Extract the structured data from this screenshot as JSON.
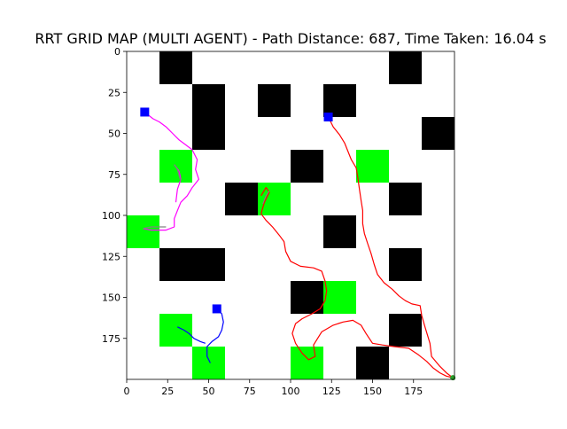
{
  "chart_data": {
    "type": "heatmap",
    "title": "RRT GRID MAP (MULTI AGENT) - Path Distance: 687, Time Taken: 16.04 s",
    "xlabel": "",
    "ylabel": "",
    "xlim": [
      0,
      200
    ],
    "ylim": [
      200,
      0
    ],
    "x_ticks": [
      0,
      25,
      50,
      75,
      100,
      125,
      150,
      175
    ],
    "y_ticks": [
      0,
      25,
      50,
      75,
      100,
      125,
      150,
      175
    ],
    "grid": false,
    "cell_size": 20,
    "colors": {
      "free": "#ffffff",
      "obstacle": "#000000",
      "goal_cell": "#00ff00",
      "start_marker": "#0000ff",
      "end_marker": "#2ca02c"
    },
    "obstacles": [
      [
        20,
        0
      ],
      [
        160,
        0
      ],
      [
        40,
        20
      ],
      [
        80,
        20
      ],
      [
        120,
        20
      ],
      [
        40,
        40
      ],
      [
        180,
        40
      ],
      [
        100,
        60
      ],
      [
        60,
        80
      ],
      [
        160,
        80
      ],
      [
        120,
        100
      ],
      [
        20,
        120
      ],
      [
        40,
        120
      ],
      [
        160,
        120
      ],
      [
        100,
        140
      ],
      [
        160,
        160
      ],
      [
        140,
        180
      ]
    ],
    "goal_cells": [
      [
        20,
        60
      ],
      [
        140,
        60
      ],
      [
        80,
        80
      ],
      [
        0,
        100
      ],
      [
        120,
        140
      ],
      [
        20,
        160
      ],
      [
        40,
        180
      ],
      [
        100,
        180
      ]
    ],
    "start_markers": [
      [
        11,
        37
      ],
      [
        123,
        40
      ],
      [
        55,
        157
      ]
    ],
    "end_markers": [
      [
        199,
        199
      ]
    ],
    "series": [
      {
        "color": "#ff00ff",
        "points": [
          [
            11,
            37
          ],
          [
            16,
            41
          ],
          [
            20,
            43
          ],
          [
            24,
            46
          ],
          [
            28,
            50
          ],
          [
            32,
            54
          ],
          [
            36,
            57
          ],
          [
            40,
            60
          ],
          [
            43,
            66
          ],
          [
            42,
            72
          ],
          [
            44,
            78
          ],
          [
            40,
            83
          ],
          [
            37,
            88
          ],
          [
            33,
            92
          ],
          [
            31,
            97
          ],
          [
            29,
            102
          ],
          [
            29,
            107
          ],
          [
            24,
            109
          ],
          [
            20,
            109
          ],
          [
            15,
            109
          ],
          [
            10,
            108
          ]
        ]
      },
      {
        "color": "#ff00ff",
        "points": [
          [
            29,
            69
          ],
          [
            32,
            73
          ],
          [
            33,
            78
          ],
          [
            31,
            84
          ],
          [
            30,
            92
          ]
        ]
      },
      {
        "color": "#808080",
        "points": [
          [
            29,
            69
          ],
          [
            31,
            72
          ],
          [
            32,
            76
          ],
          [
            33,
            79
          ]
        ]
      },
      {
        "color": "#808080",
        "points": [
          [
            10,
            108
          ],
          [
            15,
            107
          ],
          [
            20,
            107
          ],
          [
            24,
            107
          ]
        ]
      },
      {
        "color": "#0000ff",
        "points": [
          [
            55,
            157
          ],
          [
            58,
            160
          ],
          [
            59,
            165
          ],
          [
            58,
            170
          ],
          [
            56,
            174
          ],
          [
            52,
            177
          ],
          [
            49,
            180
          ],
          [
            49,
            186
          ],
          [
            51,
            190
          ]
        ]
      },
      {
        "color": "#0000ff",
        "points": [
          [
            31,
            168
          ],
          [
            35,
            170
          ],
          [
            38,
            172
          ],
          [
            41,
            175
          ],
          [
            45,
            177
          ],
          [
            48,
            178
          ]
        ]
      },
      {
        "color": "#ff0000",
        "points": [
          [
            123,
            40
          ],
          [
            126,
            46
          ],
          [
            130,
            51
          ],
          [
            133,
            56
          ],
          [
            135,
            61
          ],
          [
            137,
            66
          ],
          [
            140,
            71
          ],
          [
            141,
            77
          ],
          [
            142,
            84
          ],
          [
            143,
            91
          ],
          [
            144,
            97
          ],
          [
            144,
            105
          ],
          [
            145,
            111
          ],
          [
            147,
            117
          ],
          [
            149,
            123
          ],
          [
            151,
            130
          ],
          [
            153,
            136
          ],
          [
            157,
            141
          ],
          [
            162,
            145
          ],
          [
            166,
            149
          ],
          [
            170,
            152
          ],
          [
            174,
            154
          ],
          [
            179,
            155
          ],
          [
            180,
            161
          ],
          [
            182,
            168
          ],
          [
            185,
            178
          ],
          [
            186,
            186
          ],
          [
            191,
            192
          ],
          [
            195,
            196
          ],
          [
            199,
            199
          ]
        ]
      },
      {
        "color": "#ff0000",
        "points": [
          [
            82,
            88
          ],
          [
            85,
            83
          ],
          [
            87,
            86
          ],
          [
            84,
            92
          ],
          [
            82,
            99
          ],
          [
            85,
            103
          ],
          [
            89,
            107
          ],
          [
            93,
            112
          ],
          [
            96,
            116
          ],
          [
            97,
            122
          ],
          [
            100,
            128
          ],
          [
            106,
            131
          ],
          [
            114,
            132
          ],
          [
            119,
            134
          ],
          [
            121,
            140
          ],
          [
            122,
            146
          ],
          [
            121,
            152
          ],
          [
            118,
            157
          ],
          [
            113,
            160
          ],
          [
            107,
            163
          ],
          [
            103,
            166
          ],
          [
            101,
            172
          ],
          [
            103,
            178
          ],
          [
            107,
            184
          ],
          [
            111,
            188
          ],
          [
            115,
            186
          ],
          [
            114,
            179
          ],
          [
            119,
            171
          ],
          [
            126,
            167
          ],
          [
            132,
            165
          ],
          [
            138,
            164
          ],
          [
            143,
            167
          ],
          [
            146,
            172
          ],
          [
            150,
            178
          ],
          [
            156,
            179
          ],
          [
            163,
            180
          ],
          [
            172,
            181
          ],
          [
            178,
            185
          ],
          [
            183,
            189
          ],
          [
            187,
            193
          ],
          [
            191,
            196
          ],
          [
            195,
            198
          ],
          [
            199,
            199
          ]
        ]
      },
      {
        "color": "#808080",
        "points": [
          [
            83,
            93
          ],
          [
            85,
            88
          ],
          [
            87,
            85
          ]
        ]
      }
    ]
  }
}
